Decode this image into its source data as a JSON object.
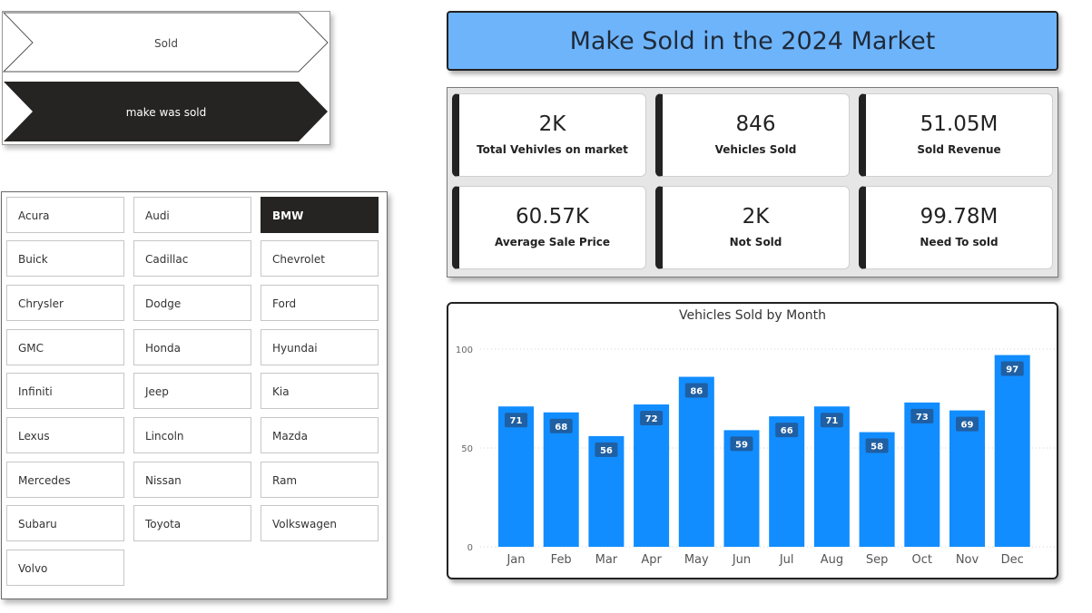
{
  "nav": {
    "sold_label": "Sold",
    "make_label": "make was sold"
  },
  "slicer": {
    "selected": "BMW",
    "items": [
      "Acura",
      "Audi",
      "BMW",
      "Buick",
      "Cadillac",
      "Chevrolet",
      "Chrysler",
      "Dodge",
      "Ford",
      "GMC",
      "Honda",
      "Hyundai",
      "Infiniti",
      "Jeep",
      "Kia",
      "Lexus",
      "Lincoln",
      "Mazda",
      "Mercedes",
      "Nissan",
      "Ram",
      "Subaru",
      "Toyota",
      "Volkswagen",
      "Volvo"
    ]
  },
  "header": {
    "title": "Make Sold in the 2024 Market"
  },
  "kpis": [
    {
      "value": "2K",
      "label": "Total Vehivles on market"
    },
    {
      "value": "846",
      "label": "Vehicles Sold"
    },
    {
      "value": "51.05M",
      "label": "Sold Revenue"
    },
    {
      "value": "60.57K",
      "label": "Average Sale Price"
    },
    {
      "value": "2K",
      "label": "Not Sold"
    },
    {
      "value": "99.78M",
      "label": "Need To sold"
    }
  ],
  "colors": {
    "accent": "#6eb4fb",
    "bar": "#118dff",
    "label_bg": "#1f5fa3",
    "dark": "#252423"
  },
  "chart_data": {
    "type": "bar",
    "title": "Vehicles Sold by Month",
    "xlabel": "",
    "ylabel": "",
    "categories": [
      "Jan",
      "Feb",
      "Mar",
      "Apr",
      "May",
      "Jun",
      "Jul",
      "Aug",
      "Sep",
      "Oct",
      "Nov",
      "Dec"
    ],
    "values": [
      71,
      68,
      56,
      72,
      86,
      59,
      66,
      71,
      58,
      73,
      69,
      97
    ],
    "ylim": [
      0,
      100
    ],
    "yticks": [
      0,
      50,
      100
    ],
    "grid": true,
    "data_labels": true
  }
}
